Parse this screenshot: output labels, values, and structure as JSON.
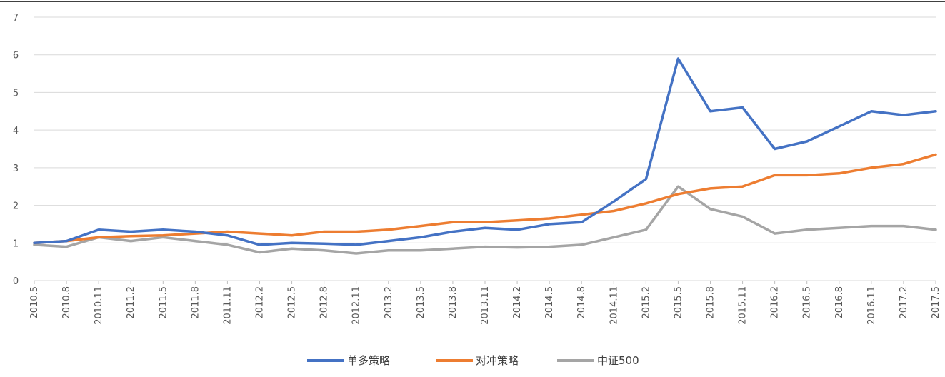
{
  "chart_data": {
    "type": "line",
    "title": "",
    "xlabel": "",
    "ylabel": "",
    "ylim": [
      0,
      7
    ],
    "yticks": [
      0,
      1,
      2,
      3,
      4,
      5,
      6,
      7
    ],
    "grid": "horizontal",
    "legend_position": "bottom",
    "categories": [
      "2010.5",
      "2010.8",
      "2010.11",
      "2011.2",
      "2011.5",
      "2011.8",
      "2011.11",
      "2012.2",
      "2012.5",
      "2012.8",
      "2012.11",
      "2013.2",
      "2013.5",
      "2013.8",
      "2013.11",
      "2014.2",
      "2014.5",
      "2014.8",
      "2014.11",
      "2015.2",
      "2015.5",
      "2015.8",
      "2015.11",
      "2016.2",
      "2016.5",
      "2016.8",
      "2016.11",
      "2017.2",
      "2017.5"
    ],
    "series": [
      {
        "name": "单多策略",
        "color": "#4472C4",
        "values": [
          1.0,
          1.05,
          1.35,
          1.3,
          1.35,
          1.3,
          1.2,
          0.95,
          1.0,
          0.98,
          0.95,
          1.05,
          1.15,
          1.3,
          1.4,
          1.35,
          1.5,
          1.55,
          2.1,
          2.7,
          5.9,
          4.5,
          4.6,
          3.5,
          3.7,
          4.1,
          4.5,
          4.4,
          4.5
        ]
      },
      {
        "name": "对冲策略",
        "color": "#ED7D31",
        "values": [
          1.0,
          1.05,
          1.15,
          1.18,
          1.2,
          1.25,
          1.3,
          1.25,
          1.2,
          1.3,
          1.3,
          1.35,
          1.45,
          1.55,
          1.55,
          1.6,
          1.65,
          1.75,
          1.85,
          2.05,
          2.3,
          2.45,
          2.5,
          2.8,
          2.8,
          2.85,
          3.0,
          3.1,
          3.35
        ]
      },
      {
        "name": "中证500",
        "color": "#A5A5A5",
        "values": [
          0.95,
          0.9,
          1.15,
          1.05,
          1.15,
          1.05,
          0.95,
          0.75,
          0.85,
          0.8,
          0.72,
          0.8,
          0.8,
          0.85,
          0.9,
          0.88,
          0.9,
          0.95,
          1.15,
          1.35,
          2.5,
          1.9,
          1.7,
          1.25,
          1.35,
          1.4,
          1.45,
          1.45,
          1.35
        ]
      }
    ]
  }
}
